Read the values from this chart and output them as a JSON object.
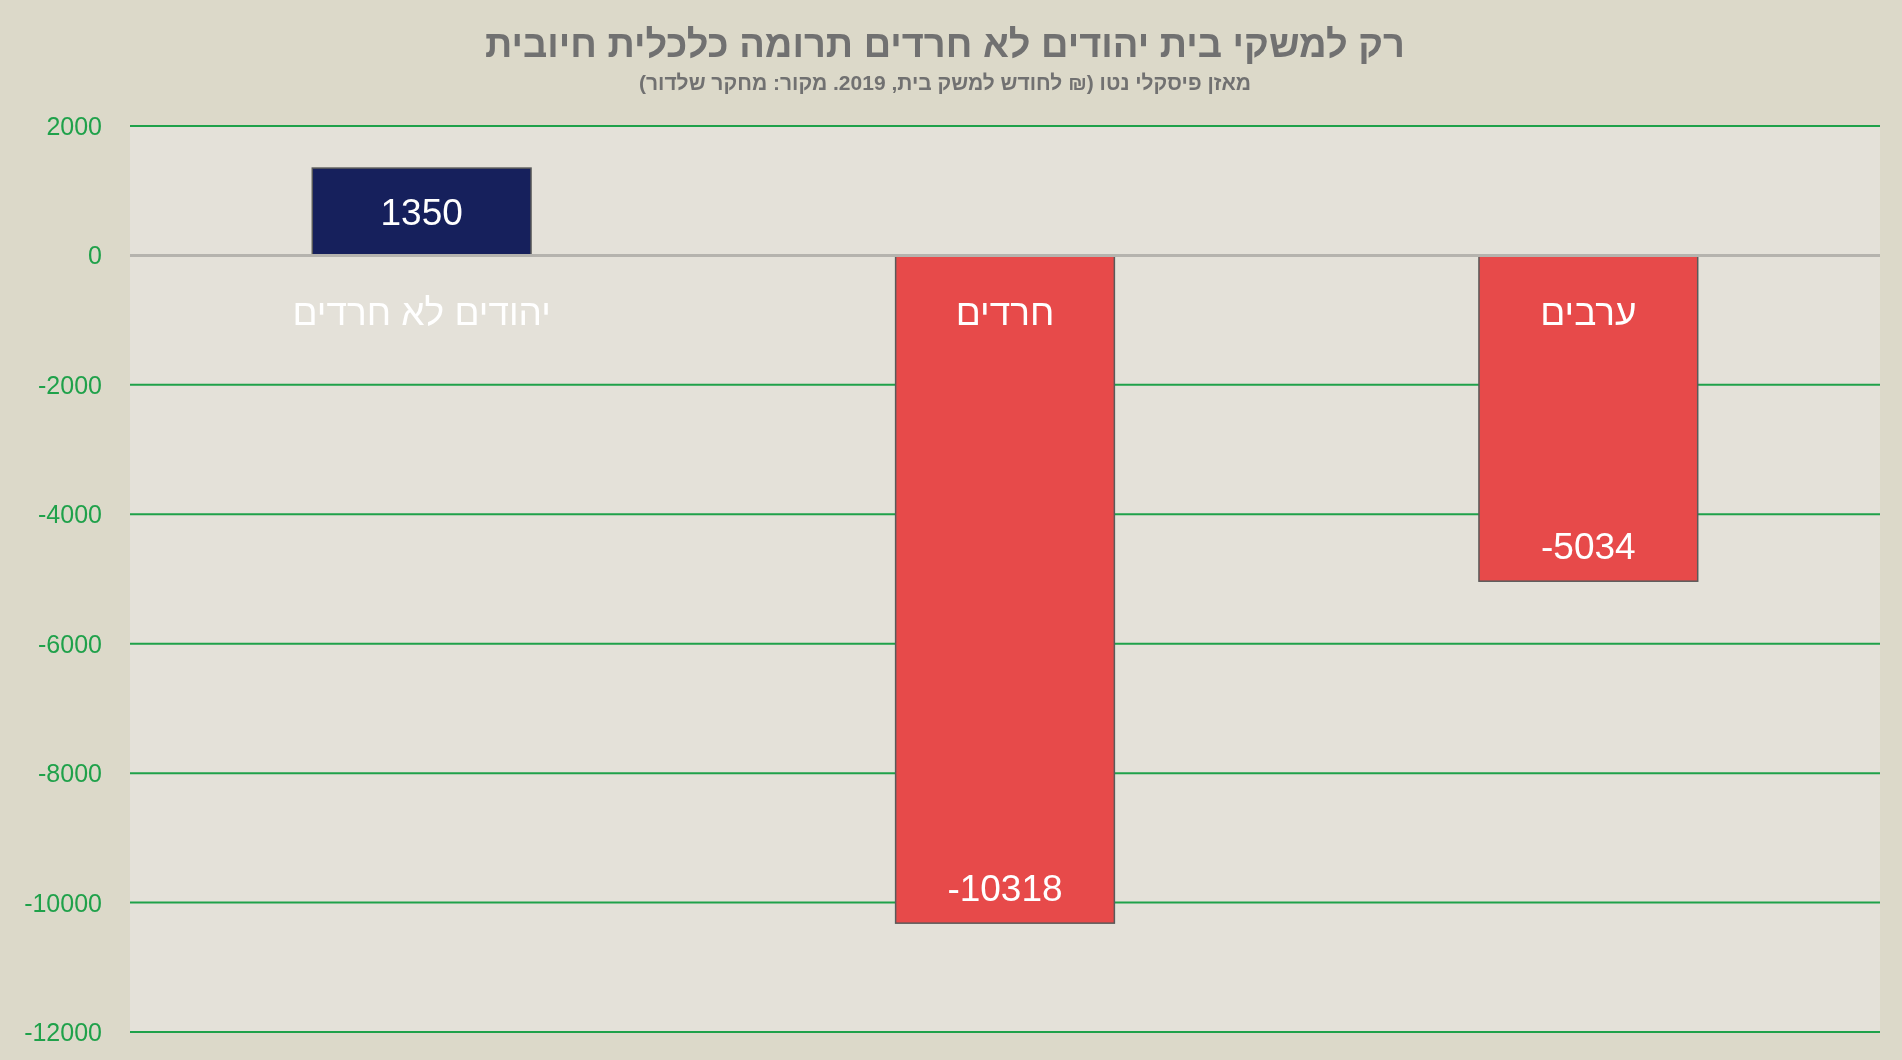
{
  "chart_data": {
    "type": "bar",
    "title": "רק למשקי בית יהודים לא חרדים תרומה כלכלית חיובית",
    "subtitle": "מאזן פיסקלי נטו (₪ לחודש למשק בית, 2019. מקור: מחקר שלדור)",
    "categories": [
      "יהודים לא חרדים",
      "חרדים",
      "ערבים"
    ],
    "values": [
      1350,
      -10318,
      -5034
    ],
    "colors": [
      "#16205c",
      "#e74a4a",
      "#e74a4a"
    ],
    "ylim": [
      -12000,
      2000
    ],
    "yticks": [
      -12000,
      -10000,
      -8000,
      -6000,
      -4000,
      -2000,
      0,
      2000
    ],
    "grid": "y",
    "data_labels": true
  }
}
